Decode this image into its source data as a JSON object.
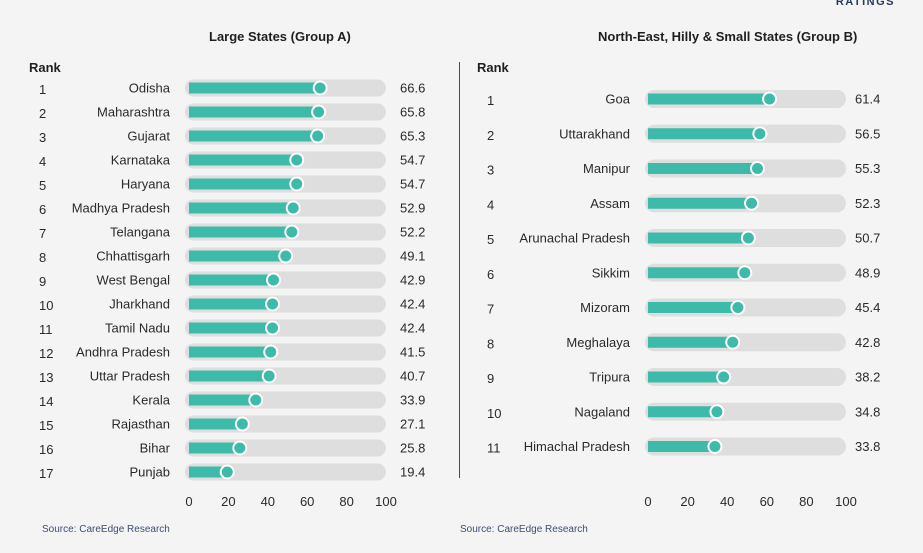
{
  "header": {
    "corner_label": "RATINGS"
  },
  "rank_heading": "Rank",
  "colors": {
    "track": "#dedede",
    "fill": "#3dbaaa",
    "dot_stroke": "#ffffff",
    "text": "#2a2a2a"
  },
  "panels": [
    {
      "title": "Large States (Group A)",
      "source": "Source: CareEdge Research"
    },
    {
      "title": "North-East, Hilly & Small States (Group B)",
      "source": "Source: CareEdge Research"
    }
  ],
  "chart_data": [
    {
      "type": "bar",
      "title": "Large States (Group A)",
      "xlim": [
        0,
        100
      ],
      "xticks": [
        "0",
        "20",
        "40",
        "60",
        "80",
        "100"
      ],
      "ranks": [
        "1",
        "2",
        "3",
        "4",
        "5",
        "6",
        "7",
        "8",
        "9",
        "10",
        "11",
        "12",
        "13",
        "14",
        "15",
        "16",
        "17"
      ],
      "categories": [
        "Odisha",
        "Maharashtra",
        "Gujarat",
        "Karnataka",
        "Haryana",
        "Madhya Pradesh",
        "Telangana",
        "Chhattisgarh",
        "West Bengal",
        "Jharkhand",
        "Tamil Nadu",
        "Andhra Pradesh",
        "Uttar Pradesh",
        "Kerala",
        "Rajasthan",
        "Bihar",
        "Punjab"
      ],
      "values": [
        66.6,
        65.8,
        65.3,
        54.7,
        54.7,
        52.9,
        52.2,
        49.1,
        42.9,
        42.4,
        42.4,
        41.5,
        40.7,
        33.9,
        27.1,
        25.8,
        19.4
      ],
      "value_labels": [
        "66.6",
        "65.8",
        "65.3",
        "54.7",
        "54.7",
        "52.9",
        "52.2",
        "49.1",
        "42.9",
        "42.4",
        "42.4",
        "41.5",
        "40.7",
        "33.9",
        "27.1",
        "25.8",
        "19.4"
      ]
    },
    {
      "type": "bar",
      "title": "North-East, Hilly & Small States (Group B)",
      "xlim": [
        0,
        100
      ],
      "xticks": [
        "0",
        "20",
        "40",
        "60",
        "80",
        "100"
      ],
      "ranks": [
        "1",
        "2",
        "3",
        "4",
        "5",
        "6",
        "7",
        "8",
        "9",
        "10",
        "11"
      ],
      "categories": [
        "Goa",
        "Uttarakhand",
        "Manipur",
        "Assam",
        "Arunachal Pradesh",
        "Sikkim",
        "Mizoram",
        "Meghalaya",
        "Tripura",
        "Nagaland",
        "Himachal Pradesh"
      ],
      "values": [
        61.4,
        56.5,
        55.3,
        52.3,
        50.7,
        48.9,
        45.4,
        42.8,
        38.2,
        34.8,
        33.8
      ],
      "value_labels": [
        "61.4",
        "56.5",
        "55.3",
        "52.3",
        "50.7",
        "48.9",
        "45.4",
        "42.8",
        "38.2",
        "34.8",
        "33.8"
      ]
    }
  ]
}
